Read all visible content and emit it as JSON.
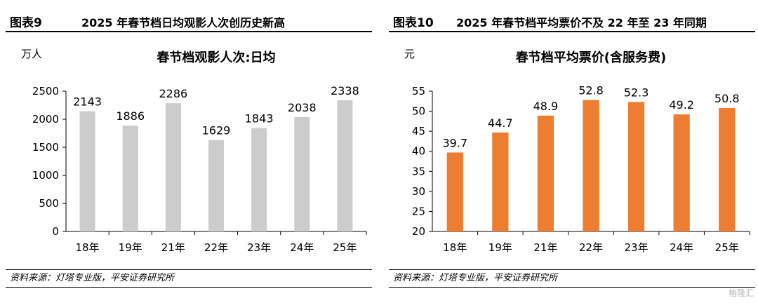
{
  "figures": [
    {
      "fig_num": "图表9",
      "fig_title": "2025 年春节档日均观影人次创历史新高",
      "source": "资料来源：灯塔专业版，平安证券研究所"
    },
    {
      "fig_num": "图表10",
      "fig_title": "2025 年春节档平均票价不及 22 年至 23 年同期",
      "source": "资料来源：灯塔专业版，平安证券研究所"
    }
  ],
  "watermark": "格隆汇",
  "chart_data": [
    {
      "type": "bar",
      "title": "春节档观影人次:日均",
      "ylabel": "万人",
      "xlabel": "",
      "categories": [
        "18年",
        "19年",
        "21年",
        "22年",
        "23年",
        "24年",
        "25年"
      ],
      "values": [
        2143,
        1886,
        2286,
        1629,
        1843,
        2038,
        2338
      ],
      "value_labels": [
        "2143",
        "1886",
        "2286",
        "1629",
        "1843",
        "2038",
        "2338"
      ],
      "ylim": [
        0,
        2500
      ],
      "yticks": [
        0,
        500,
        1000,
        1500,
        2000,
        2500
      ],
      "ytick_labels": [
        "0",
        "500",
        "1000",
        "1500",
        "2000",
        "2500"
      ],
      "grid": false,
      "bar_color": "#cccccc"
    },
    {
      "type": "bar",
      "title": "春节档平均票价(含服务费)",
      "ylabel": "元",
      "xlabel": "",
      "categories": [
        "18年",
        "19年",
        "21年",
        "22年",
        "23年",
        "24年",
        "25年"
      ],
      "values": [
        39.7,
        44.7,
        48.9,
        52.8,
        52.3,
        49.2,
        50.8
      ],
      "value_labels": [
        "39.7",
        "44.7",
        "48.9",
        "52.8",
        "52.3",
        "49.2",
        "50.8"
      ],
      "ylim": [
        20,
        55
      ],
      "yticks": [
        20,
        25,
        30,
        35,
        40,
        45,
        50,
        55
      ],
      "ytick_labels": [
        "20",
        "25",
        "30",
        "35",
        "40",
        "45",
        "50",
        "55"
      ],
      "grid": false,
      "bar_color": "#ed7d31"
    }
  ]
}
